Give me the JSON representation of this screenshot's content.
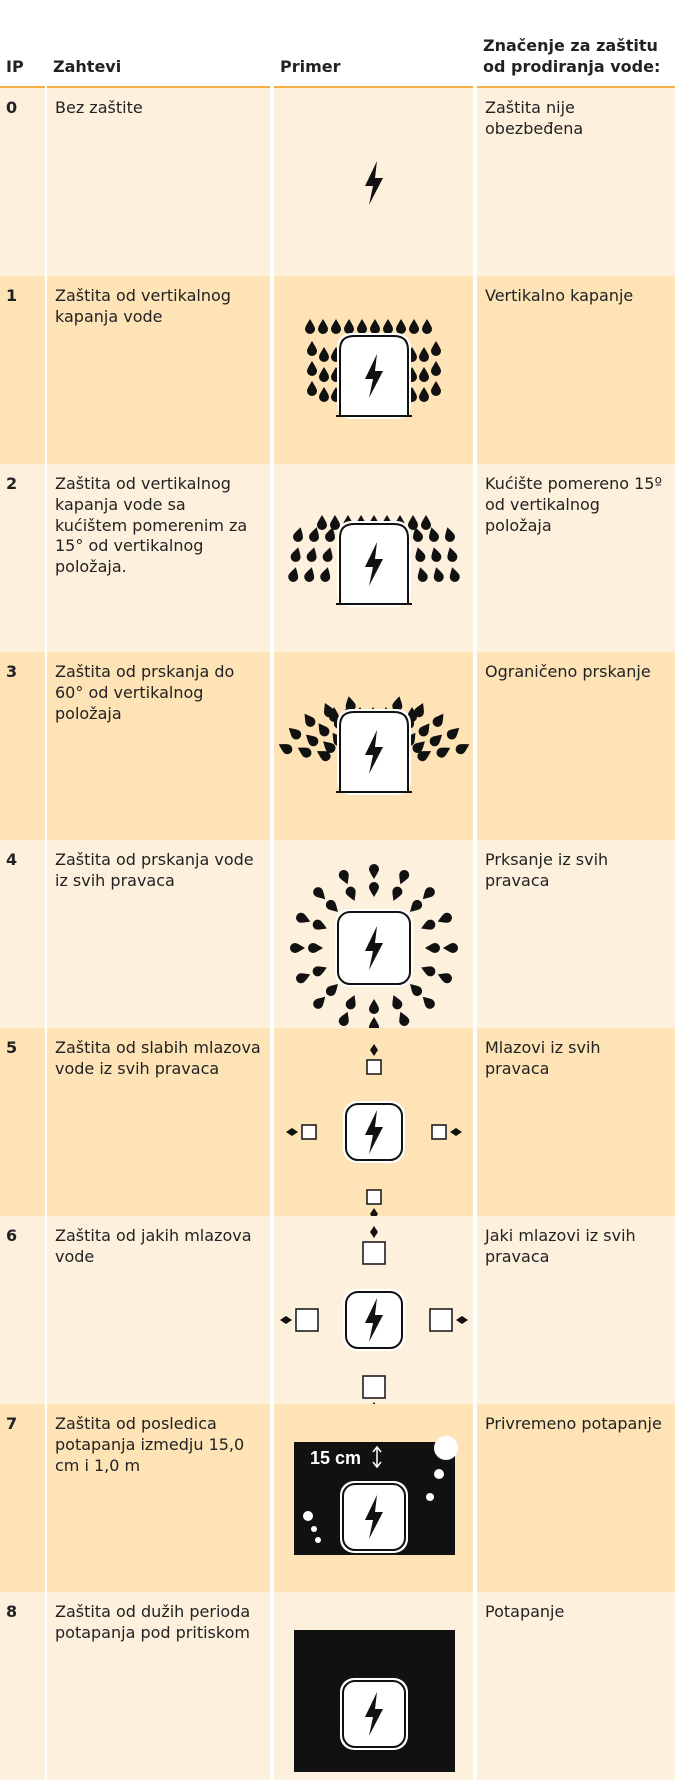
{
  "header": {
    "ip": "IP",
    "requirement": "Zahtevi",
    "example": "Primer",
    "meaning": "Značenje za zaštitu od prodiranja vode:"
  },
  "rows": [
    {
      "ip": "0",
      "requirement": "Bez zaštite",
      "meaning": "Zaštita nije obezbeđena"
    },
    {
      "ip": "1",
      "requirement": "Zaštita od vertikalnog kapanja vode",
      "meaning": "Vertikalno kapanje"
    },
    {
      "ip": "2",
      "requirement": "Zaštita od vertikalnog kapanja vode sa kućištem pomerenim za 15° od vertikalnog položaja.",
      "meaning": "Kućište pomereno 15º od vertikalnog položaja"
    },
    {
      "ip": "3",
      "requirement": "Zaštita od prskanja do 60° od vertikalnog položaja",
      "meaning": "Ograničeno prskanje"
    },
    {
      "ip": "4",
      "requirement": "Zaštita od prskanja vode iz svih pravaca",
      "meaning": "Prksanje iz svih pravaca"
    },
    {
      "ip": "5",
      "requirement": "Zaštita od slabih mlazova vode iz svih pravaca",
      "meaning": "Mlazovi iz svih pravaca"
    },
    {
      "ip": "6",
      "requirement": "Zaštita od jakih mlazova vode",
      "meaning": "Jaki mlazovi iz svih pravaca"
    },
    {
      "ip": "7",
      "requirement": "Zaštita od posledica potapanja izmedju 15,0 cm i 1,0 m",
      "meaning": "Privremeno potapanje",
      "example_label": "15 cm"
    },
    {
      "ip": "8",
      "requirement": "Zaštita od dužih perioda potapanja pod pritiskom",
      "meaning": "Potapanje"
    }
  ]
}
